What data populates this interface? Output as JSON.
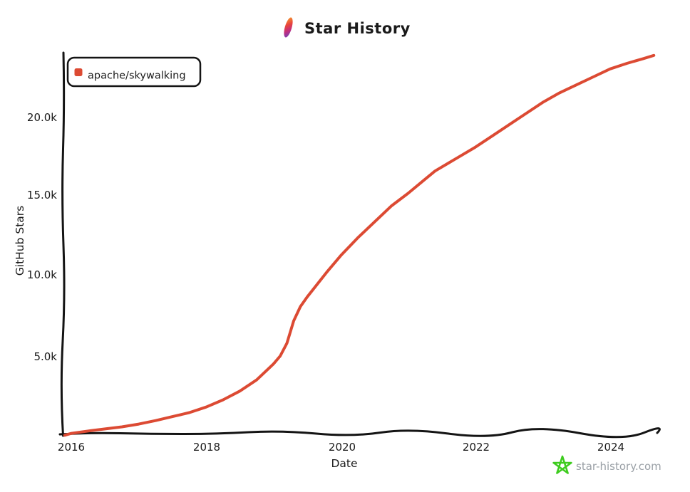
{
  "header": {
    "title": "Star History"
  },
  "icons": {
    "title_icon": "feather-icon",
    "watermark_icon": "doodle-star-icon"
  },
  "colors": {
    "accent": "#DC4A33",
    "axis": "#141414",
    "watermark_green": "#3ECC1F",
    "watermark_gray": "#9aa0a6"
  },
  "legend": {
    "items": [
      {
        "label": "apache/skywalking",
        "color": "#DC4A33"
      }
    ]
  },
  "watermark": {
    "text": "star-history.com"
  },
  "chart_data": {
    "type": "line",
    "title": "Star History",
    "xlabel": "Date",
    "ylabel": "GitHub Stars",
    "grid": false,
    "legend_position": "top-left",
    "xlim": [
      2015.87,
      2024.7
    ],
    "ylim": [
      0,
      24000
    ],
    "x_tick_labels": [
      "2016",
      "2018",
      "2020",
      "2022",
      "2024"
    ],
    "x_tick_values": [
      2016,
      2018,
      2020,
      2022,
      2024
    ],
    "y_tick_labels": [
      "5.0k",
      "10.0k",
      "15.0k",
      "20.0k"
    ],
    "y_tick_values": [
      5000,
      10000,
      15000,
      20000
    ],
    "series": [
      {
        "name": "apache/skywalking",
        "color": "#DC4A33",
        "points": [
          [
            2015.9,
            30
          ],
          [
            2016.0,
            150
          ],
          [
            2016.25,
            300
          ],
          [
            2016.5,
            430
          ],
          [
            2016.75,
            560
          ],
          [
            2017.0,
            730
          ],
          [
            2017.25,
            950
          ],
          [
            2017.5,
            1200
          ],
          [
            2017.75,
            1450
          ],
          [
            2018.0,
            1800
          ],
          [
            2018.25,
            2250
          ],
          [
            2018.5,
            2800
          ],
          [
            2018.75,
            3500
          ],
          [
            2019.0,
            4500
          ],
          [
            2019.1,
            5000
          ],
          [
            2019.2,
            5800
          ],
          [
            2019.3,
            7200
          ],
          [
            2019.4,
            8100
          ],
          [
            2019.5,
            8700
          ],
          [
            2019.65,
            9500
          ],
          [
            2019.8,
            10300
          ],
          [
            2020.0,
            11300
          ],
          [
            2020.25,
            12400
          ],
          [
            2020.5,
            13400
          ],
          [
            2020.75,
            14400
          ],
          [
            2021.0,
            15200
          ],
          [
            2021.2,
            15900
          ],
          [
            2021.4,
            16600
          ],
          [
            2021.6,
            17100
          ],
          [
            2021.8,
            17600
          ],
          [
            2022.0,
            18100
          ],
          [
            2022.25,
            18800
          ],
          [
            2022.5,
            19500
          ],
          [
            2022.75,
            20200
          ],
          [
            2023.0,
            20900
          ],
          [
            2023.25,
            21500
          ],
          [
            2023.5,
            22000
          ],
          [
            2023.75,
            22500
          ],
          [
            2024.0,
            23000
          ],
          [
            2024.25,
            23350
          ],
          [
            2024.5,
            23650
          ],
          [
            2024.65,
            23850
          ]
        ]
      }
    ]
  }
}
